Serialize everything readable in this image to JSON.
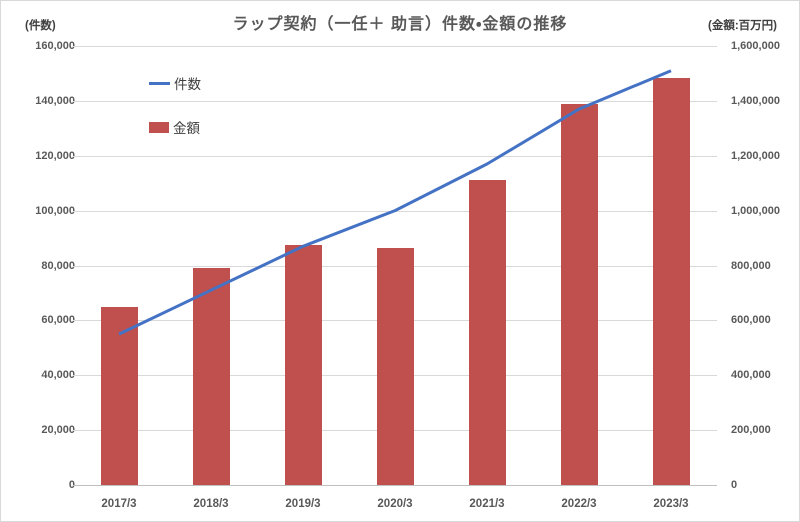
{
  "chart_data": {
    "type": "combo",
    "title": "ラップ契約（一任＋ 助言）件数・金額の推移",
    "categories": [
      "2017/3",
      "2018/3",
      "2019/3",
      "2020/3",
      "2021/3",
      "2022/3",
      "2023/3"
    ],
    "series": [
      {
        "name": "件数",
        "type": "line",
        "axis": "left",
        "color": "#4472c4",
        "values": [
          55000,
          71000,
          87000,
          100000,
          117000,
          137000,
          151000
        ]
      },
      {
        "name": "金額",
        "type": "bar",
        "axis": "right",
        "color": "#c0504d",
        "values": [
          650000,
          790000,
          875000,
          865000,
          1110000,
          1390000,
          1485000
        ]
      }
    ],
    "left_axis": {
      "label": "(件数)",
      "min": 0,
      "max": 160000,
      "step": 20000
    },
    "right_axis": {
      "label": "(金額:百万円)",
      "min": 0,
      "max": 1600000,
      "step": 200000
    },
    "grid": true,
    "legend_position": "inside-top-left",
    "gridline_color": "#d9d9d9",
    "axis_line_color": "#bfbfbf",
    "text_color": "#595959"
  }
}
